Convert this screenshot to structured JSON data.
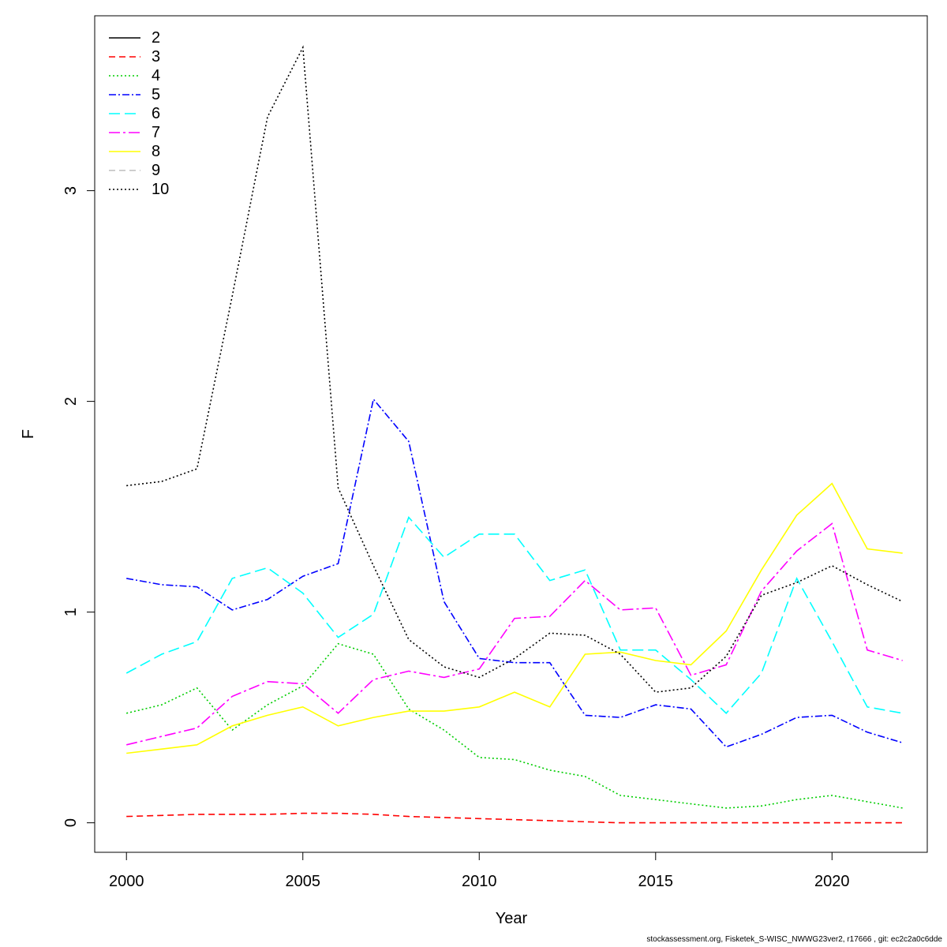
{
  "chart_data": {
    "type": "line",
    "title": "",
    "xlabel": "Year",
    "ylabel": "F",
    "xlim": [
      1999.1,
      2022.7
    ],
    "ylim": [
      -0.14,
      3.83
    ],
    "x_ticks": [
      2000,
      2005,
      2010,
      2015,
      2020
    ],
    "y_ticks": [
      0,
      1,
      2,
      3
    ],
    "legend_position": "top-left",
    "grid": false,
    "x": [
      2000,
      2001,
      2002,
      2003,
      2004,
      2005,
      2006,
      2007,
      2008,
      2009,
      2010,
      2011,
      2012,
      2013,
      2014,
      2015,
      2016,
      2017,
      2018,
      2019,
      2020,
      2021,
      2022
    ],
    "series": [
      {
        "name": "2",
        "color": "#000000",
        "dash": "",
        "values": [
          null,
          null,
          null,
          null,
          null,
          null,
          null,
          null,
          null,
          null,
          null,
          null,
          null,
          null,
          null,
          null,
          null,
          null,
          null,
          null,
          null,
          null,
          null
        ]
      },
      {
        "name": "3",
        "color": "#ff0000",
        "dash": "8,5",
        "values": [
          0.03,
          0.035,
          0.04,
          0.04,
          0.04,
          0.045,
          0.045,
          0.04,
          0.03,
          0.025,
          0.02,
          0.015,
          0.01,
          0.005,
          0.0,
          0.0,
          0.0,
          0.0,
          0.0,
          0.0,
          0.0,
          0.0,
          0.0
        ]
      },
      {
        "name": "4",
        "color": "#00cd00",
        "dash": "2,3",
        "values": [
          0.52,
          0.56,
          0.64,
          0.44,
          0.56,
          0.65,
          0.85,
          0.8,
          0.54,
          0.44,
          0.31,
          0.3,
          0.25,
          0.22,
          0.13,
          0.11,
          0.09,
          0.07,
          0.08,
          0.11,
          0.13,
          0.1,
          0.07
        ]
      },
      {
        "name": "5",
        "color": "#0000ff",
        "dash": "9,3,2,3",
        "values": [
          1.16,
          1.13,
          1.12,
          1.01,
          1.06,
          1.17,
          1.23,
          2.01,
          1.81,
          1.05,
          0.78,
          0.76,
          0.76,
          0.51,
          0.5,
          0.56,
          0.54,
          0.36,
          0.42,
          0.5,
          0.51,
          0.43,
          0.38
        ]
      },
      {
        "name": "6",
        "color": "#00ffff",
        "dash": "14,6",
        "values": [
          0.71,
          0.8,
          0.86,
          1.16,
          1.21,
          1.09,
          0.88,
          0.99,
          1.45,
          1.26,
          1.37,
          1.37,
          1.15,
          1.2,
          0.82,
          0.82,
          0.68,
          0.52,
          0.71,
          1.16,
          0.86,
          0.55,
          0.52
        ]
      },
      {
        "name": "7",
        "color": "#ff00ff",
        "dash": "14,4,3,4",
        "values": [
          0.37,
          0.41,
          0.45,
          0.6,
          0.67,
          0.66,
          0.52,
          0.68,
          0.72,
          0.69,
          0.73,
          0.97,
          0.98,
          1.15,
          1.01,
          1.02,
          0.7,
          0.75,
          1.1,
          1.29,
          1.42,
          0.82,
          0.77
        ]
      },
      {
        "name": "8",
        "color": "#ffff00",
        "dash": "",
        "values": [
          0.33,
          0.35,
          0.37,
          0.46,
          0.51,
          0.55,
          0.46,
          0.5,
          0.53,
          0.53,
          0.55,
          0.62,
          0.55,
          0.8,
          0.81,
          0.77,
          0.75,
          0.91,
          1.2,
          1.46,
          1.61,
          1.3,
          1.28
        ]
      },
      {
        "name": "9",
        "color": "#bebebe",
        "dash": "8,5",
        "values": [
          null,
          null,
          null,
          null,
          null,
          null,
          null,
          null,
          null,
          null,
          null,
          null,
          null,
          null,
          null,
          null,
          null,
          null,
          null,
          null,
          null,
          null,
          null
        ]
      },
      {
        "name": "10",
        "color": "#000000",
        "dash": "2,3",
        "values": [
          1.6,
          1.62,
          1.68,
          2.5,
          3.35,
          3.68,
          1.59,
          1.22,
          0.87,
          0.74,
          0.69,
          0.78,
          0.9,
          0.89,
          0.8,
          0.62,
          0.64,
          0.79,
          1.08,
          1.14,
          1.22,
          1.13,
          1.05
        ]
      }
    ]
  },
  "footer": "stockassessment.org, Fisketek_S-WISC_NWWG23ver2, r17666 , git: ec2c2a0c6dde"
}
